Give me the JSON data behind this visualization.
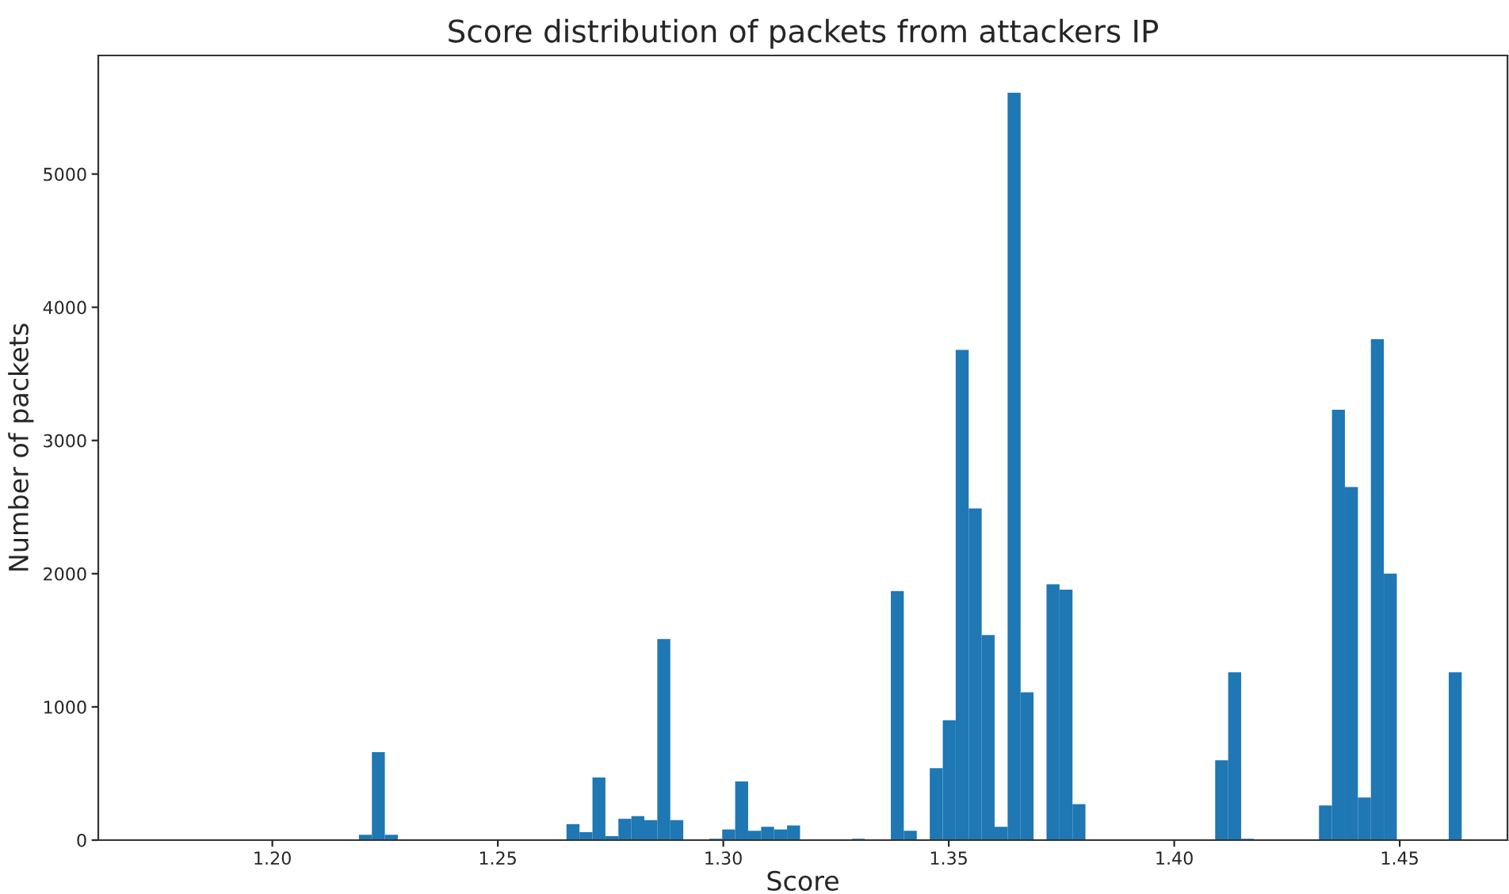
{
  "chart_data": {
    "type": "histogram",
    "title": "Score distribution of packets from attackers IP",
    "xlabel": "Score",
    "ylabel": "Number of packets",
    "color": "#1f77b4",
    "bins": [
      1.2192,
      1.22208,
      1.22495,
      1.22783,
      1.23071,
      1.23359,
      1.23646,
      1.23934,
      1.24222,
      1.24509,
      1.24797,
      1.25085,
      1.25372,
      1.2566,
      1.25948,
      1.26236,
      1.26523,
      1.26811,
      1.27099,
      1.27386,
      1.27674,
      1.27962,
      1.28249,
      1.28537,
      1.28825,
      1.29113,
      1.294,
      1.29688,
      1.29976,
      1.30263,
      1.30551,
      1.30839,
      1.31126,
      1.31414,
      1.31702,
      1.3199,
      1.32277,
      1.32565,
      1.32853,
      1.3314,
      1.33428,
      1.33716,
      1.34003,
      1.34291,
      1.34579,
      1.34867,
      1.35154,
      1.35442,
      1.3573,
      1.36017,
      1.36305,
      1.36593,
      1.3688,
      1.37168,
      1.37456,
      1.37744,
      1.38031,
      1.38319,
      1.38607,
      1.38894,
      1.39182,
      1.3947,
      1.39757,
      1.40045,
      1.40333,
      1.40621,
      1.40908,
      1.41196,
      1.41484,
      1.41771,
      1.42059,
      1.42347,
      1.42634,
      1.42922,
      1.4321,
      1.43498,
      1.43785,
      1.44073,
      1.44361,
      1.44648,
      1.44936,
      1.45224,
      1.45511,
      1.45799,
      1.46087,
      1.46375
    ],
    "values": [
      40,
      660,
      40,
      0,
      0,
      0,
      0,
      0,
      0,
      0,
      0,
      0,
      0,
      0,
      0,
      0,
      120,
      60,
      470,
      30,
      160,
      180,
      150,
      1510,
      150,
      0,
      0,
      10,
      80,
      440,
      70,
      100,
      80,
      110,
      0,
      0,
      0,
      0,
      10,
      0,
      0,
      1870,
      70,
      0,
      540,
      900,
      3680,
      2490,
      1540,
      100,
      5610,
      1110,
      0,
      1920,
      1880,
      270,
      0,
      0,
      0,
      0,
      0,
      0,
      0,
      0,
      0,
      0,
      600,
      1260,
      10,
      0,
      0,
      0,
      0,
      0,
      260,
      3230,
      2650,
      320,
      3760,
      2000,
      0,
      0,
      0,
      0,
      1260
    ],
    "xlim": [
      1.1614,
      1.4739
    ],
    "ylim": [
      0,
      5890
    ],
    "xticks": [
      {
        "value": 1.2,
        "label": "1.20"
      },
      {
        "value": 1.25,
        "label": "1.25"
      },
      {
        "value": 1.3,
        "label": "1.30"
      },
      {
        "value": 1.35,
        "label": "1.35"
      },
      {
        "value": 1.4,
        "label": "1.40"
      },
      {
        "value": 1.45,
        "label": "1.45"
      }
    ],
    "yticks": [
      0,
      1000,
      2000,
      3000,
      4000,
      5000
    ],
    "grid": false,
    "legend": false
  }
}
